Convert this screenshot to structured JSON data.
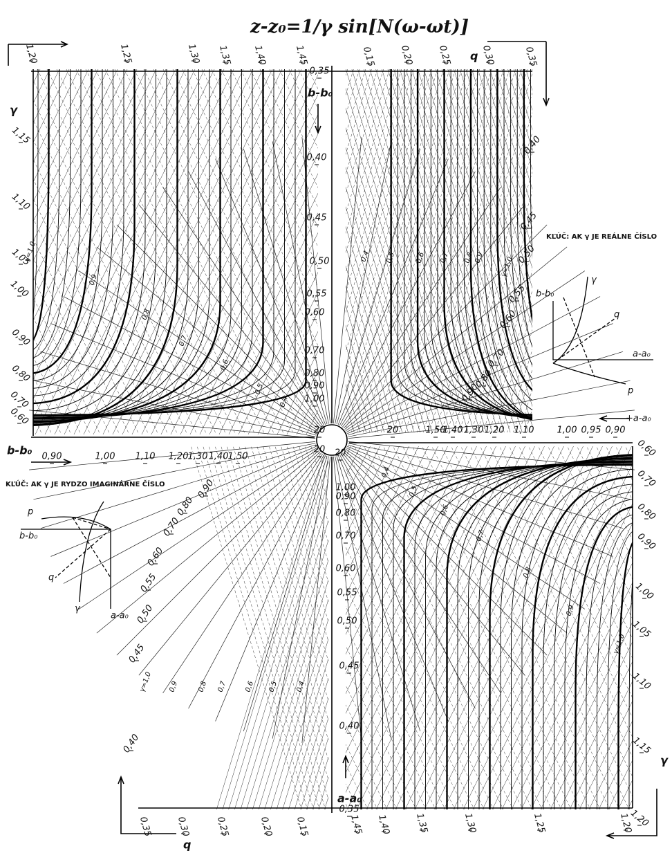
{
  "title": "z-z₀=1/γ sin[N(ω-ωt)]",
  "axis_labels": {
    "q_top": "q",
    "q_bottom": "q",
    "gamma_left": "γ",
    "gamma_right": "γ",
    "b_top": "b-b₀",
    "b_left": "b-b₀",
    "a_right": "+a-a₀",
    "a_bottom": "a-a₀"
  },
  "keys": {
    "real": "KĽÚČ: AK γ JE REÁLNE ČÍSLO",
    "imaginary": "KĽÚČ: AK γ JE RYDZO IMAGINÁRNE ČÍSLO"
  },
  "key_symbols": {
    "b": "b-b₀",
    "a": "a-a₀",
    "gamma": "γ",
    "q": "q",
    "p": "p"
  },
  "scales": {
    "top_gamma": [
      "1,20",
      "1,25",
      "1,30",
      "1,35",
      "1,40",
      "1,45"
    ],
    "top_q": [
      "0,15",
      "0,20",
      "0,25",
      "0,30",
      "0,35"
    ],
    "left_gamma": [
      "1,15",
      "1,10",
      "1,05",
      "1,00",
      "0,90",
      "0,80",
      "0,70",
      "0,60"
    ],
    "center_b": [
      "0,35",
      "0,40",
      "0,45",
      "0,50",
      "0,55",
      "0,60",
      "0,70",
      "0,80",
      "0,90",
      "1,00",
      "20"
    ],
    "right_p": [
      "0,40",
      "0,45",
      "0,50",
      "0,55",
      "0,60",
      "0,70",
      "0,80",
      "0,90"
    ],
    "left_b": [
      "0,90",
      "1,00",
      "1,10",
      "1,20",
      "1,30",
      "1,40",
      "1,50",
      "20"
    ],
    "right_a": [
      "20",
      "1,50",
      "1,40",
      "1,30",
      "1,20",
      "1,10",
      "1,00",
      "0,95",
      "0,90"
    ],
    "right_gamma": [
      "0,60",
      "0,70",
      "0,80",
      "0,90",
      "1,00",
      "1,05",
      "1,10",
      "1,15",
      "1,20"
    ],
    "bottom_q": [
      "0,35",
      "0,30",
      "0,25",
      "0,20",
      "0,15"
    ],
    "bottom_gamma": [
      "1,45",
      "1,40",
      "1,35",
      "1,30",
      "1,25",
      "1,20"
    ],
    "center_a": [
      "20",
      "1,00",
      "0,90",
      "0,80",
      "0,70",
      "0,60",
      "0,55",
      "0,50",
      "0,45",
      "0,40",
      "0,35"
    ],
    "left_p": [
      "0,90",
      "0,80",
      "0,70",
      "0,60",
      "0,55",
      "0,50",
      "0,45",
      "0,40"
    ]
  },
  "curve_labels": {
    "top_left": [
      "γ=1,0",
      "0,9",
      "0,8",
      "0,7",
      "0,6",
      "0,5",
      "0,4"
    ],
    "top_right": [
      "0,4",
      "0,5",
      "0,6",
      "0,7",
      "0,8",
      "0,9",
      "γ=1,0"
    ],
    "bottom_left": [
      "γ=1,0",
      "0,9",
      "0,8",
      "0,7",
      "0,6",
      "0,5",
      "0,4"
    ],
    "bottom_right": [
      "0,4",
      "0,5",
      "0,6",
      "0,7",
      "0,8",
      "0,9",
      "γ=1,0"
    ]
  }
}
